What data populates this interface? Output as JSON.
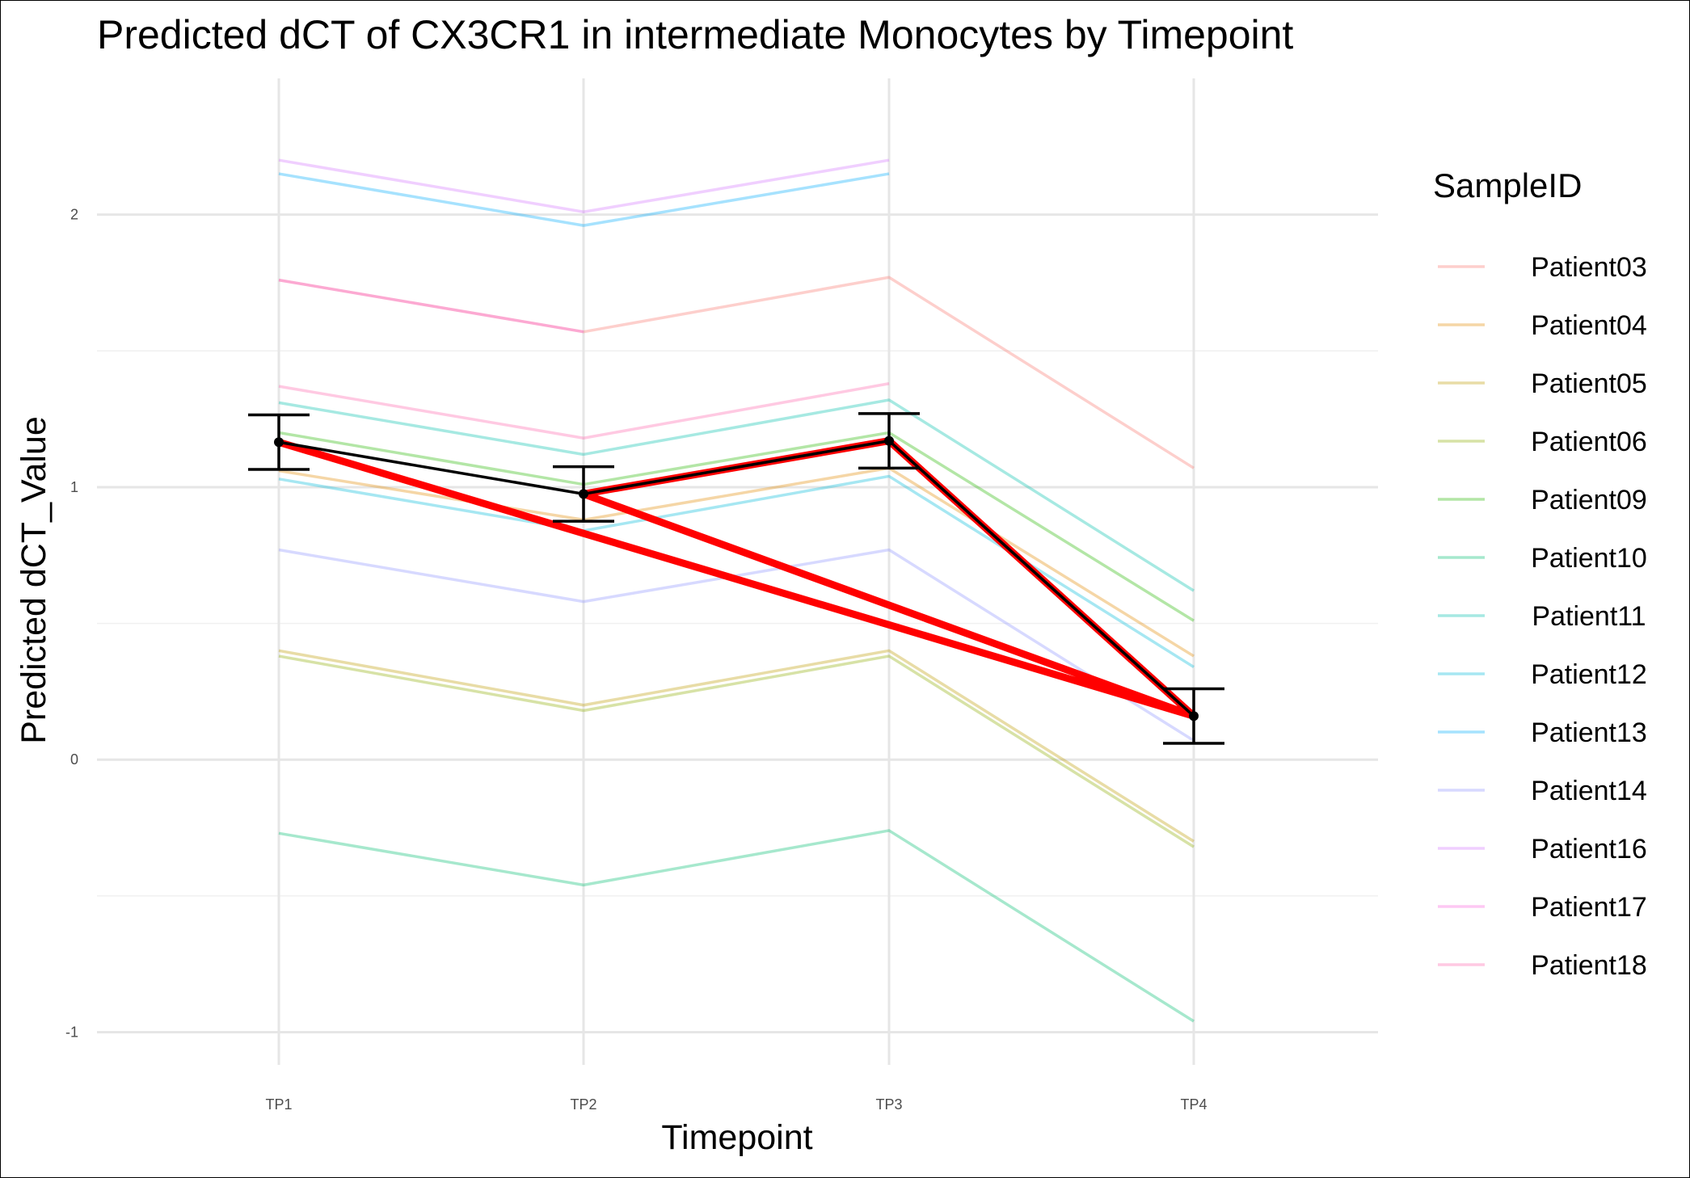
{
  "chart_data": {
    "type": "line",
    "title": "Predicted dCT of  CX3CR1 in  intermediate  Monocytes by Timepoint",
    "xlabel": "Timepoint",
    "ylabel": "Predicted dCT_Value",
    "categories": [
      "TP1",
      "TP2",
      "TP3",
      "TP4"
    ],
    "ylim": [
      -1.12,
      2.5
    ],
    "yticks": [
      -1,
      0,
      1,
      2
    ],
    "ytick_labels": [
      "-1",
      "0",
      "1",
      "2"
    ],
    "grid": true,
    "legend": {
      "title": "SampleID",
      "position": "right"
    },
    "series": [
      {
        "name": "Patient03",
        "color": "#F8766D",
        "values": [
          1.76,
          1.57,
          1.77,
          1.07
        ]
      },
      {
        "name": "Patient04",
        "color": "#E18A00",
        "values": [
          1.06,
          0.88,
          1.07,
          0.38
        ]
      },
      {
        "name": "Patient05",
        "color": "#BE9C00",
        "values": [
          0.4,
          0.2,
          0.4,
          -0.3
        ]
      },
      {
        "name": "Patient06",
        "color": "#8CAB00",
        "values": [
          0.38,
          0.18,
          0.38,
          -0.32
        ]
      },
      {
        "name": "Patient09",
        "color": "#24B700",
        "values": [
          1.2,
          1.01,
          1.2,
          0.51
        ]
      },
      {
        "name": "Patient10",
        "color": "#00BE70",
        "values": [
          -0.27,
          -0.46,
          -0.26,
          -0.96
        ]
      },
      {
        "name": "Patient11",
        "color": "#00C1AB",
        "values": [
          1.31,
          1.12,
          1.32,
          0.62
        ]
      },
      {
        "name": "Patient12",
        "color": "#00BBDA",
        "values": [
          1.03,
          0.84,
          1.04,
          0.34
        ]
      },
      {
        "name": "Patient13",
        "color": "#00ACFC",
        "values": [
          2.15,
          1.96,
          2.15,
          null
        ]
      },
      {
        "name": "Patient14",
        "color": "#8B93FF",
        "values": [
          0.77,
          0.58,
          0.77,
          0.07
        ]
      },
      {
        "name": "Patient16",
        "color": "#D575FE",
        "values": [
          2.2,
          2.01,
          2.2,
          null
        ]
      },
      {
        "name": "Patient17",
        "color": "#F962DD",
        "values": [
          1.76,
          1.57,
          null,
          null
        ]
      },
      {
        "name": "Patient18",
        "color": "#FF65AC",
        "values": [
          1.37,
          1.18,
          1.38,
          null
        ]
      }
    ],
    "mean": {
      "color": "#000000",
      "values": [
        1.165,
        0.975,
        1.17,
        0.16
      ],
      "error_lower": [
        1.065,
        0.875,
        1.07,
        0.06
      ],
      "error_upper": [
        1.265,
        1.075,
        1.27,
        0.26
      ]
    },
    "highlight": {
      "color": "#FF0000",
      "sequence": [
        0,
        3,
        1,
        2,
        3
      ]
    }
  }
}
